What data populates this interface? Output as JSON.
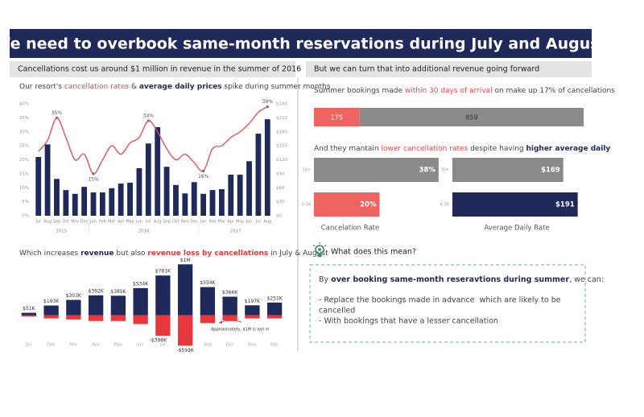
{
  "title": "We need to overbook same-month reservations during July and August",
  "left_heading": "Cancellations cost us around $1 million in revenue in the summer of 2016",
  "right_heading": "But we can turn that into additional revenue going forward",
  "comparison_heading": [
    "And they mantain ",
    "lower cancellation rates",
    " despite having ",
    "higher average daily"
  ],
  "chart_data": [
    {
      "type": "bar-line",
      "subtitle": [
        "Our resort's ",
        "cancellation rates",
        " & ",
        "average daily prices",
        " spike during summer months"
      ],
      "categories": [
        "Jul",
        "Aug",
        "Sep",
        "Oct",
        "Nov",
        "Dec",
        "Jan",
        "Feb",
        "Mar",
        "Apr",
        "May",
        "Jun",
        "Jul",
        "Aug",
        "Sep",
        "Oct",
        "Nov",
        "Dec",
        "Jan",
        "Feb",
        "Mar",
        "Apr",
        "May",
        "Jun",
        "Jul",
        "Aug"
      ],
      "groups": [
        "2015",
        "2016",
        "2017"
      ],
      "series": [
        {
          "kind": "bar",
          "axis": "y2",
          "color": "#1f2a5a",
          "values": [
            126,
            153,
            79,
            55,
            47,
            62,
            50,
            50,
            59,
            69,
            71,
            102,
            155,
            190,
            105,
            66,
            48,
            72,
            47,
            55,
            57,
            88,
            88,
            117,
            176,
            207
          ]
        },
        {
          "kind": "line",
          "color": "#e8494f",
          "values": [
            23,
            27,
            35,
            28,
            20,
            22,
            15,
            20,
            25,
            22,
            26,
            28,
            34,
            30,
            24,
            20,
            22,
            19,
            16,
            24,
            25,
            28,
            30,
            33,
            37,
            39
          ],
          "value_labels": [
            null,
            null,
            "35%",
            null,
            null,
            null,
            "15%",
            null,
            null,
            null,
            null,
            null,
            "34%",
            null,
            null,
            null,
            null,
            null,
            "16%",
            null,
            null,
            null,
            null,
            null,
            null,
            "39%"
          ]
        }
      ],
      "ylim": [
        0,
        40
      ],
      "yticks": [
        {
          "value": 0,
          "label": "0%"
        },
        {
          "value": 5,
          "label": "5%"
        },
        {
          "value": 10,
          "label": "10%"
        },
        {
          "value": 15,
          "label": "15%"
        },
        {
          "value": 20,
          "label": "20%"
        },
        {
          "value": 25,
          "label": "25%"
        },
        {
          "value": 30,
          "label": "30%"
        },
        {
          "value": 35,
          "label": "35%"
        },
        {
          "value": 40,
          "label": "40%"
        }
      ],
      "y2lim": [
        0,
        240
      ],
      "y2ticks": [
        {
          "value": 0,
          "label": "$0"
        },
        {
          "value": 30,
          "label": "$30"
        },
        {
          "value": 60,
          "label": "$60"
        },
        {
          "value": 90,
          "label": "$90"
        },
        {
          "value": 120,
          "label": "$120"
        },
        {
          "value": 150,
          "label": "$150"
        },
        {
          "value": 180,
          "label": "$180"
        },
        {
          "value": 210,
          "label": "$210"
        },
        {
          "value": 240,
          "label": "$240"
        }
      ]
    },
    {
      "type": "bar",
      "subtitle": [
        "Which increases ",
        "revenue",
        " but also ",
        "revenue loss by cancellations",
        " in July & August"
      ],
      "categories": [
        "Jan",
        "Feb",
        "Mar",
        "Apr",
        "May",
        "Jun",
        "Jul",
        "Aug",
        "Sep",
        "Oct",
        "Nov",
        "Dec"
      ],
      "series": [
        {
          "color": "#1f2a5a",
          "values": [
            51000,
            193000,
            303000,
            392000,
            385000,
            534000,
            781000,
            1000000,
            554000,
            366000,
            197000,
            251000
          ],
          "value_labels": [
            "$51K",
            "$193K",
            "$303K",
            "$392K",
            "$385K",
            "$534K",
            "$781K",
            "$1M",
            "$554K",
            "$366K",
            "$197K",
            "$251K"
          ]
        },
        {
          "color": "#e8383d",
          "values": [
            -20000,
            -60000,
            -80000,
            -110000,
            -110000,
            -170000,
            -398000,
            -593000,
            -150000,
            -100000,
            -60000,
            -60000
          ],
          "value_labels": [
            null,
            null,
            null,
            null,
            null,
            null,
            "-$398K",
            "-$593K",
            null,
            null,
            null,
            null
          ]
        }
      ],
      "ylim": [
        -650000,
        1100000
      ],
      "annotation": "Approximately, $1M is lost in"
    },
    {
      "type": "stacked-hbar",
      "subtitle": [
        "Summer bookings made ",
        "within 30 days of arrival",
        " on make up 17% of cancellations"
      ],
      "series": [
        {
          "color": "#ef6461",
          "values": [
            175
          ]
        },
        {
          "color": "#8a8a8a",
          "values": [
            859
          ]
        }
      ],
      "xlim": [
        0,
        1034
      ]
    },
    {
      "type": "hbar",
      "title": "Cancelation Rate",
      "categories": [
        "30+",
        "0-30"
      ],
      "values": [
        38,
        20
      ],
      "value_labels": [
        "38%",
        "20%"
      ],
      "colors": [
        "#8a8a8a",
        "#ef6461"
      ],
      "xlim": [
        0,
        40
      ]
    },
    {
      "type": "hbar",
      "title": "Average Daily Rate",
      "categories": [
        "30+",
        "0-30"
      ],
      "values": [
        169,
        191
      ],
      "value_labels": [
        "$169",
        "$191"
      ],
      "colors": [
        "#8a8a8a",
        "#1f2a5a"
      ],
      "xlim": [
        0,
        200
      ]
    }
  ],
  "insight": {
    "heading": "What does this mean?",
    "intro": [
      "By ",
      "over booking same-month reseravtions during summer",
      ", we can:"
    ],
    "lines": [
      "- Replace the bookings made in advance  which are likely to be",
      "cancelled",
      "- With bookings that have a lesser cancellation"
    ]
  }
}
